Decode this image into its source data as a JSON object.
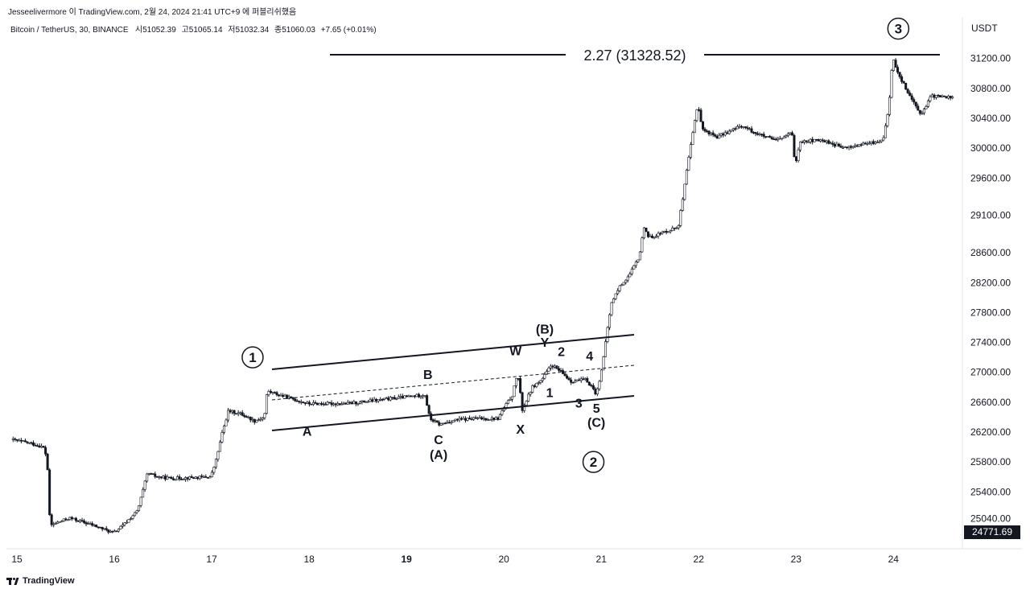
{
  "header": {
    "attribution": "Jesseelivermore 이 TradingView.com, 2월 24, 2024 21:41 UTC+9 에 퍼블리쉬했음"
  },
  "symbol": {
    "title": "Bitcoin / TetherUS, 30, BINANCE",
    "ohlc": [
      {
        "label": "시",
        "value": "51052.39"
      },
      {
        "label": "고",
        "value": "51065.14"
      },
      {
        "label": "저",
        "value": "51032.34"
      },
      {
        "label": "종",
        "value": "51060.03"
      }
    ],
    "change": "+7.65 (+0.01%)"
  },
  "price_axis": {
    "unit": "USDT",
    "current_price": "24771.69"
  },
  "brand": "TradingView",
  "colors": {
    "up": "#131722",
    "down": "#131722",
    "background": "#ffffff",
    "text": "#131722"
  },
  "chart_data": {
    "type": "candlestick",
    "title": "",
    "xlabel": "",
    "ylabel": "",
    "y_ticks": [
      25040,
      25400,
      25800,
      26200,
      26600,
      27000,
      27400,
      27800,
      28200,
      28600,
      29100,
      29600,
      30000,
      30400,
      30800,
      31200
    ],
    "ylim": [
      24660,
      31660
    ],
    "x_ticks": [
      {
        "label": "15",
        "day": 15,
        "bold": false
      },
      {
        "label": "16",
        "day": 16,
        "bold": false
      },
      {
        "label": "17",
        "day": 17,
        "bold": false
      },
      {
        "label": "18",
        "day": 18,
        "bold": false
      },
      {
        "label": "19",
        "day": 19,
        "bold": true
      },
      {
        "label": "20",
        "day": 20,
        "bold": false
      },
      {
        "label": "21",
        "day": 21,
        "bold": false
      },
      {
        "label": "22",
        "day": 22,
        "bold": false
      },
      {
        "label": "23",
        "day": 23,
        "bold": false
      },
      {
        "label": "24",
        "day": 24,
        "bold": false
      }
    ],
    "xlim": [
      14.95,
      24.7
    ],
    "price_path": [
      [
        14.95,
        26100
      ],
      [
        15.15,
        26050
      ],
      [
        15.28,
        26000
      ],
      [
        15.32,
        25850
      ],
      [
        15.35,
        24950
      ],
      [
        15.55,
        25050
      ],
      [
        15.8,
        24950
      ],
      [
        16.0,
        24850
      ],
      [
        16.1,
        24950
      ],
      [
        16.25,
        25150
      ],
      [
        16.35,
        25650
      ],
      [
        16.45,
        25600
      ],
      [
        16.6,
        25580
      ],
      [
        17.0,
        25600
      ],
      [
        17.05,
        25800
      ],
      [
        17.12,
        26200
      ],
      [
        17.18,
        26480
      ],
      [
        17.3,
        26450
      ],
      [
        17.45,
        26350
      ],
      [
        17.55,
        26400
      ],
      [
        17.58,
        26750
      ],
      [
        17.7,
        26700
      ],
      [
        18.0,
        26580
      ],
      [
        18.4,
        26580
      ],
      [
        18.8,
        26640
      ],
      [
        19.2,
        26700
      ],
      [
        19.25,
        26380
      ],
      [
        19.35,
        26300
      ],
      [
        19.5,
        26360
      ],
      [
        19.7,
        26380
      ],
      [
        19.95,
        26380
      ],
      [
        20.0,
        26500
      ],
      [
        20.1,
        26700
      ],
      [
        20.15,
        27000
      ],
      [
        20.2,
        26500
      ],
      [
        20.3,
        26800
      ],
      [
        20.4,
        26900
      ],
      [
        20.5,
        27100
      ],
      [
        20.6,
        27000
      ],
      [
        20.7,
        26880
      ],
      [
        20.85,
        26900
      ],
      [
        20.92,
        26800
      ],
      [
        20.96,
        26700
      ],
      [
        21.0,
        26950
      ],
      [
        21.04,
        27250
      ],
      [
        21.08,
        27650
      ],
      [
        21.12,
        27950
      ],
      [
        21.2,
        28150
      ],
      [
        21.3,
        28300
      ],
      [
        21.4,
        28550
      ],
      [
        21.45,
        28950
      ],
      [
        21.5,
        28800
      ],
      [
        21.8,
        28950
      ],
      [
        21.85,
        29350
      ],
      [
        21.9,
        29800
      ],
      [
        21.95,
        30200
      ],
      [
        22.0,
        30600
      ],
      [
        22.05,
        30250
      ],
      [
        22.2,
        30150
      ],
      [
        22.45,
        30300
      ],
      [
        22.6,
        30200
      ],
      [
        22.8,
        30100
      ],
      [
        22.97,
        30200
      ],
      [
        23.0,
        29750
      ],
      [
        23.05,
        30100
      ],
      [
        23.3,
        30100
      ],
      [
        23.5,
        30000
      ],
      [
        23.7,
        30050
      ],
      [
        23.9,
        30100
      ],
      [
        23.96,
        30500
      ],
      [
        24.0,
        31200
      ],
      [
        24.08,
        30950
      ],
      [
        24.2,
        30650
      ],
      [
        24.3,
        30450
      ],
      [
        24.4,
        30700
      ],
      [
        24.6,
        30680
      ]
    ]
  },
  "annotations": {
    "fib_label": "2.27 (31328.52)",
    "wave_circles": [
      {
        "text": "1",
        "day": 17.42,
        "price": 27200
      },
      {
        "text": "2",
        "day": 20.92,
        "price": 25800
      },
      {
        "text": "3",
        "day": 24.05,
        "price": 31600
      }
    ],
    "wave_labels": [
      {
        "text": "A",
        "day": 17.98,
        "price": 26150
      },
      {
        "text": "B",
        "day": 19.22,
        "price": 26910
      },
      {
        "text": "C",
        "day": 19.33,
        "price": 26040
      },
      {
        "text": "(A)",
        "day": 19.33,
        "price": 25840
      },
      {
        "text": "W",
        "day": 20.12,
        "price": 27230
      },
      {
        "text": "(B)",
        "day": 20.42,
        "price": 27520
      },
      {
        "text": "Y",
        "day": 20.42,
        "price": 27340
      },
      {
        "text": "2",
        "day": 20.59,
        "price": 27220
      },
      {
        "text": "4",
        "day": 20.88,
        "price": 27160
      },
      {
        "text": "1",
        "day": 20.47,
        "price": 26670
      },
      {
        "text": "3",
        "day": 20.77,
        "price": 26530
      },
      {
        "text": "5",
        "day": 20.95,
        "price": 26460
      },
      {
        "text": "(C)",
        "day": 20.95,
        "price": 26270
      },
      {
        "text": "X",
        "day": 20.17,
        "price": 26180
      }
    ]
  }
}
